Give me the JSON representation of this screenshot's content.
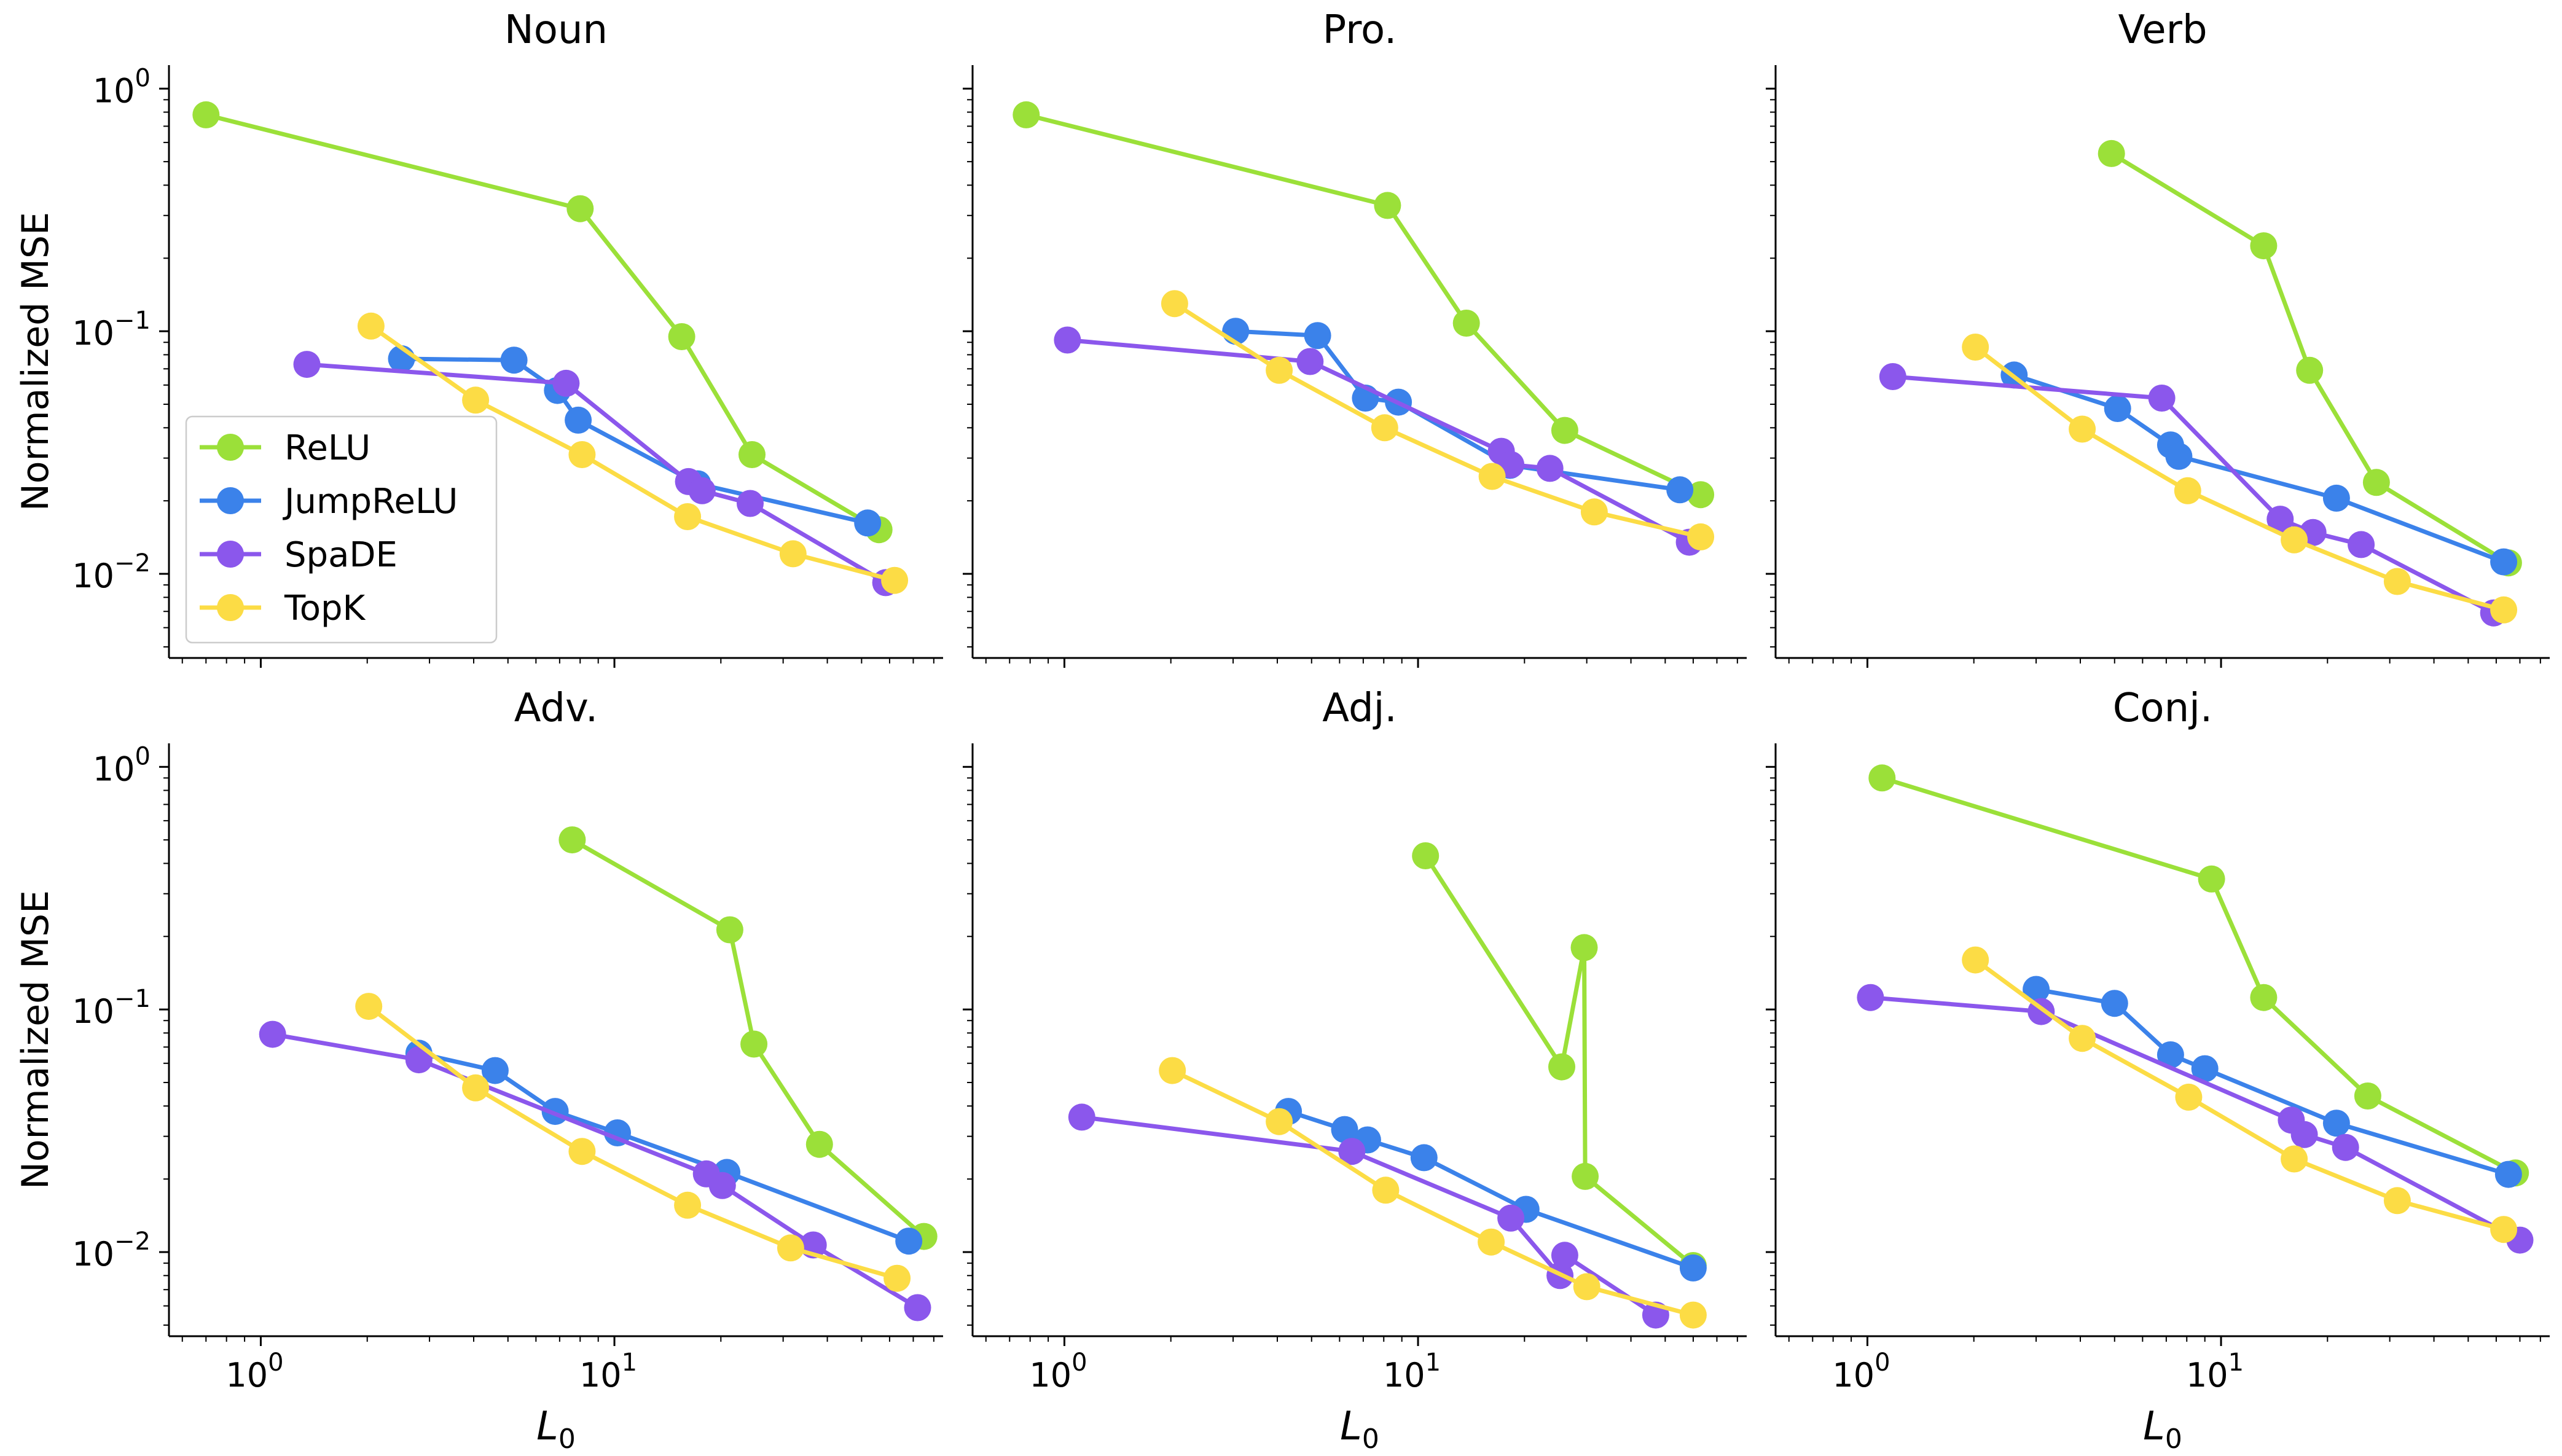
{
  "figure": {
    "ylabel": "Normalized MSE",
    "xlabel_main": "L",
    "xlabel_sub": "0",
    "y_tick_labels": [
      {
        "base": "10",
        "exp": "0",
        "value": 1
      },
      {
        "base": "10",
        "exp": "−1",
        "value": 0.1
      },
      {
        "base": "10",
        "exp": "−2",
        "value": 0.01
      }
    ],
    "x_tick_labels": [
      {
        "base": "10",
        "exp": "0",
        "value": 1
      },
      {
        "base": "10",
        "exp": "1",
        "value": 10
      }
    ]
  },
  "legend": {
    "placement": "lower-left of first panel",
    "entries": [
      {
        "label": "ReLU",
        "color": "#9BE039"
      },
      {
        "label": "JumpReLU",
        "color": "#3B82EA"
      },
      {
        "label": "SpaDE",
        "color": "#8B57EC"
      },
      {
        "label": "TopK",
        "color": "#FCDC45"
      }
    ]
  },
  "chart_data": [
    {
      "type": "line",
      "title": "Noun",
      "xscale": "log",
      "yscale": "log",
      "xlim": [
        0.55,
        85
      ],
      "ylim": [
        0.0045,
        1.25
      ],
      "series": [
        {
          "name": "ReLU",
          "color": "#9BE039",
          "x": [
            0.7,
            8,
            15.5,
            24.5,
            56
          ],
          "y": [
            0.78,
            0.32,
            0.095,
            0.031,
            0.0152
          ]
        },
        {
          "name": "JumpReLU",
          "color": "#3B82EA",
          "x": [
            2.5,
            5.2,
            6.9,
            7.9,
            17.2,
            52
          ],
          "y": [
            0.077,
            0.076,
            0.057,
            0.043,
            0.0235,
            0.0162
          ]
        },
        {
          "name": "SpaDE",
          "color": "#8B57EC",
          "x": [
            1.35,
            7.3,
            16.2,
            17.7,
            24.2,
            58.5
          ],
          "y": [
            0.073,
            0.061,
            0.024,
            0.022,
            0.0195,
            0.0092
          ]
        },
        {
          "name": "TopK",
          "color": "#FCDC45",
          "x": [
            2.05,
            4.05,
            8.1,
            16.1,
            32,
            62
          ],
          "y": [
            0.105,
            0.052,
            0.031,
            0.0172,
            0.0121,
            0.0094
          ]
        }
      ]
    },
    {
      "type": "line",
      "title": "Pro.",
      "xscale": "log",
      "yscale": "log",
      "xlim": [
        0.55,
        85
      ],
      "ylim": [
        0.0045,
        1.25
      ],
      "series": [
        {
          "name": "ReLU",
          "color": "#9BE039",
          "x": [
            0.78,
            8.2,
            13.7,
            26,
            63
          ],
          "y": [
            0.78,
            0.33,
            0.108,
            0.039,
            0.0212
          ]
        },
        {
          "name": "JumpReLU",
          "color": "#3B82EA",
          "x": [
            3.05,
            5.2,
            7.1,
            8.8,
            18.2,
            55
          ],
          "y": [
            0.1,
            0.096,
            0.053,
            0.051,
            0.028,
            0.0222
          ]
        },
        {
          "name": "SpaDE",
          "color": "#8B57EC",
          "x": [
            1.02,
            4.95,
            17.2,
            18.3,
            23.6,
            58.5
          ],
          "y": [
            0.092,
            0.075,
            0.032,
            0.0282,
            0.0272,
            0.0135
          ]
        },
        {
          "name": "TopK",
          "color": "#FCDC45",
          "x": [
            2.05,
            4.05,
            8.05,
            16.2,
            31.5,
            63
          ],
          "y": [
            0.13,
            0.069,
            0.04,
            0.0252,
            0.018,
            0.0142
          ]
        }
      ]
    },
    {
      "type": "line",
      "title": "Verb",
      "xscale": "log",
      "yscale": "log",
      "xlim": [
        0.55,
        85
      ],
      "ylim": [
        0.0045,
        1.25
      ],
      "series": [
        {
          "name": "ReLU",
          "color": "#9BE039",
          "x": [
            4.9,
            13.2,
            17.8,
            27.5,
            65
          ],
          "y": [
            0.54,
            0.225,
            0.069,
            0.0238,
            0.0111
          ]
        },
        {
          "name": "JumpReLU",
          "color": "#3B82EA",
          "x": [
            2.6,
            5.1,
            7.2,
            7.6,
            21.2,
            63
          ],
          "y": [
            0.066,
            0.048,
            0.034,
            0.0305,
            0.0205,
            0.0112
          ]
        },
        {
          "name": "SpaDE",
          "color": "#8B57EC",
          "x": [
            1.18,
            6.8,
            14.7,
            18.2,
            24.9,
            59
          ],
          "y": [
            0.065,
            0.053,
            0.0168,
            0.0148,
            0.0132,
            0.0069
          ]
        },
        {
          "name": "TopK",
          "color": "#FCDC45",
          "x": [
            2.02,
            4.05,
            8.05,
            16.1,
            31.5,
            63
          ],
          "y": [
            0.086,
            0.0395,
            0.022,
            0.0138,
            0.0093,
            0.0071
          ]
        }
      ]
    },
    {
      "type": "line",
      "title": "Adv.",
      "xscale": "log",
      "yscale": "log",
      "xlim": [
        0.55,
        85
      ],
      "ylim": [
        0.0045,
        1.25
      ],
      "series": [
        {
          "name": "ReLU",
          "color": "#9BE039",
          "x": [
            7.6,
            21.2,
            24.8,
            38,
            75
          ],
          "y": [
            0.5,
            0.213,
            0.072,
            0.0278,
            0.0116
          ]
        },
        {
          "name": "JumpReLU",
          "color": "#3B82EA",
          "x": [
            2.8,
            4.6,
            6.8,
            10.2,
            20.8,
            68
          ],
          "y": [
            0.066,
            0.056,
            0.038,
            0.031,
            0.0213,
            0.0111
          ]
        },
        {
          "name": "SpaDE",
          "color": "#8B57EC",
          "x": [
            1.08,
            2.8,
            18.2,
            20.2,
            36.5,
            72
          ],
          "y": [
            0.079,
            0.062,
            0.021,
            0.0188,
            0.0107,
            0.0059
          ]
        },
        {
          "name": "TopK",
          "color": "#FCDC45",
          "x": [
            2.02,
            4.05,
            8.1,
            16.1,
            31.5,
            63
          ],
          "y": [
            0.103,
            0.0475,
            0.026,
            0.0156,
            0.0104,
            0.0078
          ]
        }
      ]
    },
    {
      "type": "line",
      "title": "Adj.",
      "xscale": "log",
      "yscale": "log",
      "xlim": [
        0.55,
        85
      ],
      "ylim": [
        0.0045,
        1.25
      ],
      "series": [
        {
          "name": "ReLU",
          "color": "#9BE039",
          "x": [
            10.5,
            25.5,
            29.5,
            29.7,
            60
          ],
          "y": [
            0.43,
            0.058,
            0.18,
            0.0205,
            0.0088
          ]
        },
        {
          "name": "JumpReLU",
          "color": "#3B82EA",
          "x": [
            4.3,
            6.2,
            7.2,
            10.4,
            20.2,
            60
          ],
          "y": [
            0.038,
            0.032,
            0.029,
            0.0245,
            0.015,
            0.0086
          ]
        },
        {
          "name": "SpaDE",
          "color": "#8B57EC",
          "x": [
            1.12,
            6.5,
            18.3,
            25.2,
            26,
            47
          ],
          "y": [
            0.036,
            0.026,
            0.0138,
            0.008,
            0.0097,
            0.0055
          ]
        },
        {
          "name": "TopK",
          "color": "#FCDC45",
          "x": [
            2.02,
            4.05,
            8.1,
            16.1,
            30,
            60
          ],
          "y": [
            0.056,
            0.0345,
            0.018,
            0.011,
            0.0072,
            0.0055
          ]
        }
      ]
    },
    {
      "type": "line",
      "title": "Conj.",
      "xscale": "log",
      "yscale": "log",
      "xlim": [
        0.55,
        85
      ],
      "ylim": [
        0.0045,
        1.25
      ],
      "series": [
        {
          "name": "ReLU",
          "color": "#9BE039",
          "x": [
            1.1,
            9.4,
            13.2,
            26,
            68
          ],
          "y": [
            0.9,
            0.345,
            0.112,
            0.044,
            0.0212
          ]
        },
        {
          "name": "JumpReLU",
          "color": "#3B82EA",
          "x": [
            3.0,
            5.0,
            7.2,
            9.0,
            21.2,
            65
          ],
          "y": [
            0.121,
            0.106,
            0.065,
            0.057,
            0.034,
            0.0209
          ]
        },
        {
          "name": "SpaDE",
          "color": "#8B57EC",
          "x": [
            1.02,
            3.1,
            15.8,
            17.2,
            22.5,
            70
          ],
          "y": [
            0.112,
            0.098,
            0.035,
            0.0305,
            0.027,
            0.0112
          ]
        },
        {
          "name": "TopK",
          "color": "#FCDC45",
          "x": [
            2.02,
            4.05,
            8.1,
            16.1,
            31.5,
            63
          ],
          "y": [
            0.16,
            0.076,
            0.0435,
            0.0242,
            0.0163,
            0.0124
          ]
        }
      ]
    }
  ]
}
